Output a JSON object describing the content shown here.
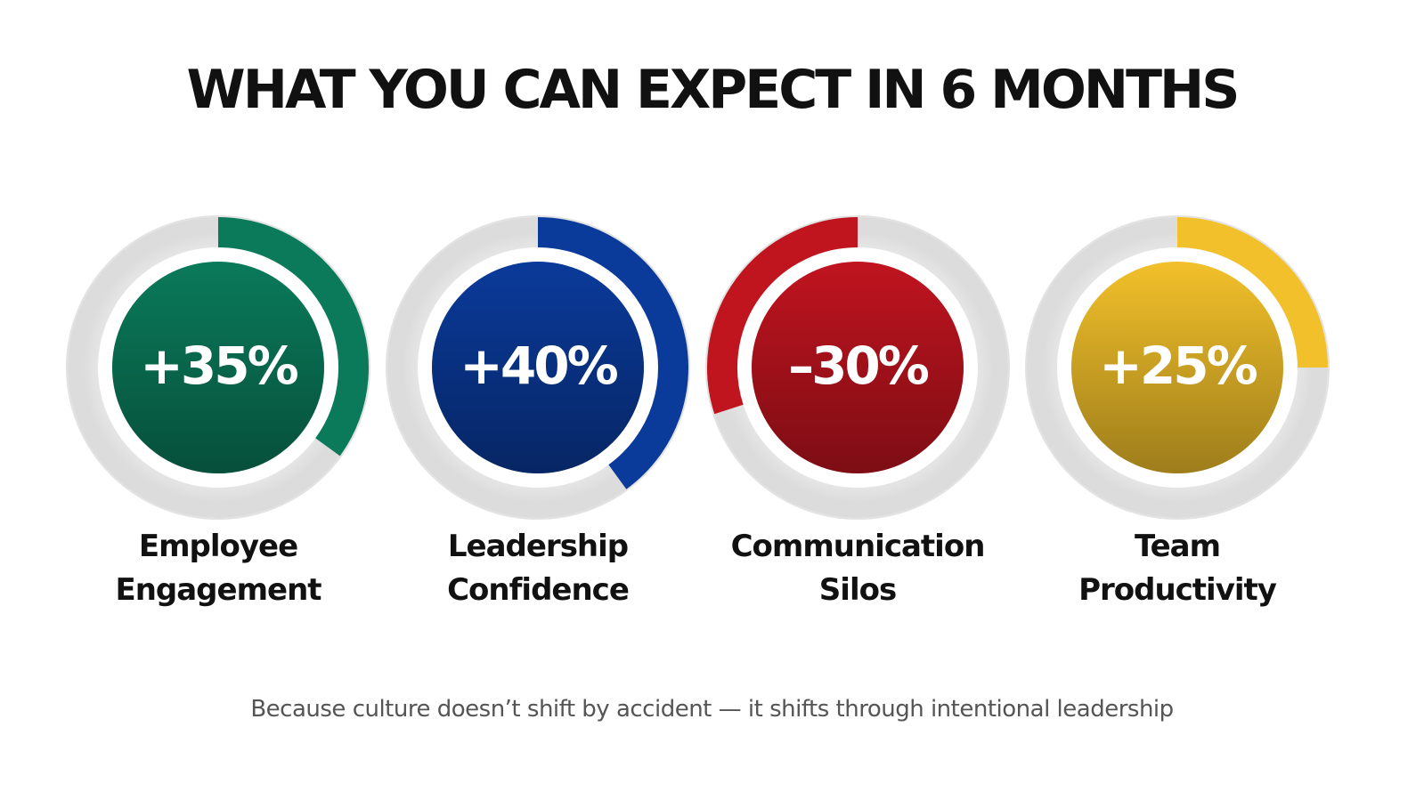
{
  "chart_data": {
    "type": "gauge",
    "title": "WHAT YOU CAN EXPECT IN 6 MONTHS",
    "subtitle": "Because culture doesn’t shift by accident — it shifts through intentional leadership",
    "categories": [
      "Employee Engagement",
      "Leadership Confidence",
      "Communication Silos",
      "Team Productivity"
    ],
    "values": [
      35,
      40,
      -30,
      25
    ],
    "value_labels": [
      "+35%",
      "+40%",
      "–30%",
      "+25%"
    ],
    "colors": [
      "#0a7a5a",
      "#0a3a9a",
      "#c0141f",
      "#f2c02a"
    ]
  }
}
